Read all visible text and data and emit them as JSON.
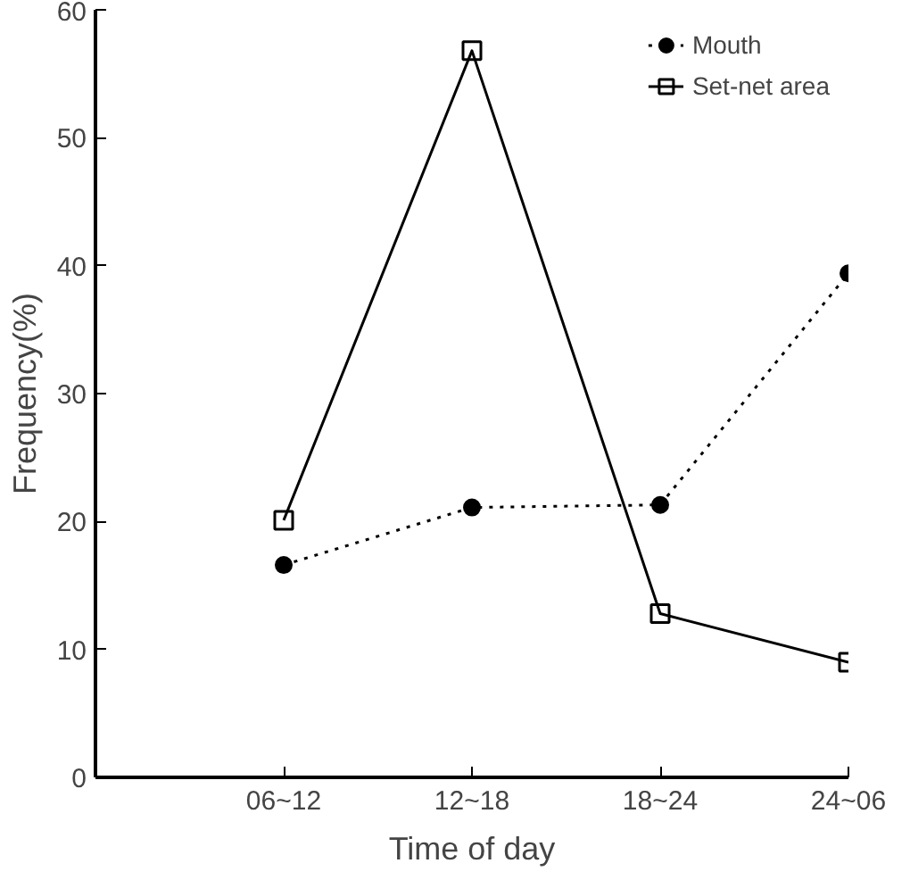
{
  "chart_data": {
    "type": "line",
    "xlabel": "Time of day",
    "ylabel": "Frequency(%)",
    "categories": [
      "06~12",
      "12~18",
      "18~24",
      "24~06"
    ],
    "series": [
      {
        "name": "Mouth",
        "color": "#000000",
        "values": [
          16.6,
          21.1,
          21.3,
          39.4
        ],
        "marker": "circle",
        "line_style": "dotted"
      },
      {
        "name": "Set-net area",
        "color": "#000000",
        "values": [
          20.1,
          56.8,
          12.8,
          9.0
        ],
        "marker": "square",
        "line_style": "solid"
      }
    ],
    "ylim": [
      0,
      60
    ],
    "yticks": [
      0,
      10,
      20,
      30,
      40,
      50,
      60
    ],
    "grid": false,
    "legend": "top right"
  }
}
